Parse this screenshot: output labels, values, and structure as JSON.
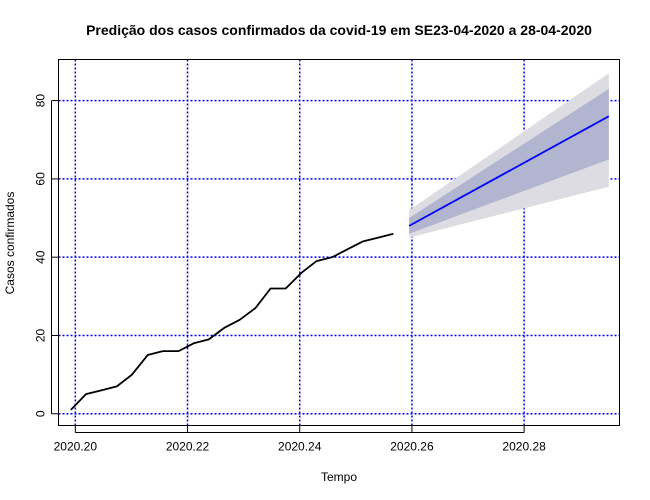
{
  "chart_data": {
    "type": "line",
    "title": "Predição dos casos confirmados da covid-19 em SE23-04-2020 a 28-04-2020",
    "xlabel": "Tempo",
    "ylabel": "Casos confirmados",
    "xlim": [
      2020.197,
      2020.297
    ],
    "ylim": [
      -3,
      90.5
    ],
    "x_ticks": [
      2020.2,
      2020.22,
      2020.24,
      2020.26,
      2020.28
    ],
    "x_tick_labels": [
      "2020.20",
      "2020.22",
      "2020.24",
      "2020.26",
      "2020.28"
    ],
    "y_ticks": [
      0,
      20,
      40,
      60,
      80
    ],
    "y_tick_labels": [
      "0",
      "20",
      "40",
      "60",
      "80"
    ],
    "grid": true,
    "grid_style": "dotted",
    "colors": {
      "grid": "#0000ff",
      "observed": "#000000",
      "forecast": "#0000ff",
      "band80": "#b1b5cf",
      "band95": "#dcdce2"
    },
    "series": [
      {
        "type": "observed",
        "x": [
          2020.1992,
          2020.2019,
          2020.2047,
          2020.2074,
          2020.2101,
          2020.2129,
          2020.2156,
          2020.2184,
          2020.2211,
          2020.2238,
          2020.2266,
          2020.2293,
          2020.2321,
          2020.2348,
          2020.2375,
          2020.2403,
          2020.243,
          2020.2458,
          2020.2485,
          2020.2512,
          2020.254,
          2020.2567
        ],
        "y": [
          1,
          5,
          6,
          7,
          10,
          15,
          16,
          16,
          18,
          19,
          22,
          24,
          27,
          32,
          32,
          36,
          39,
          40,
          42,
          44,
          45,
          46
        ]
      },
      {
        "type": "forecast",
        "x": [
          2020.2595,
          2020.2951
        ],
        "y": [
          48,
          76
        ],
        "lo80": [
          46,
          65
        ],
        "hi80": [
          50,
          83
        ],
        "lo95": [
          45,
          58
        ],
        "hi95": [
          52,
          87
        ]
      }
    ]
  }
}
